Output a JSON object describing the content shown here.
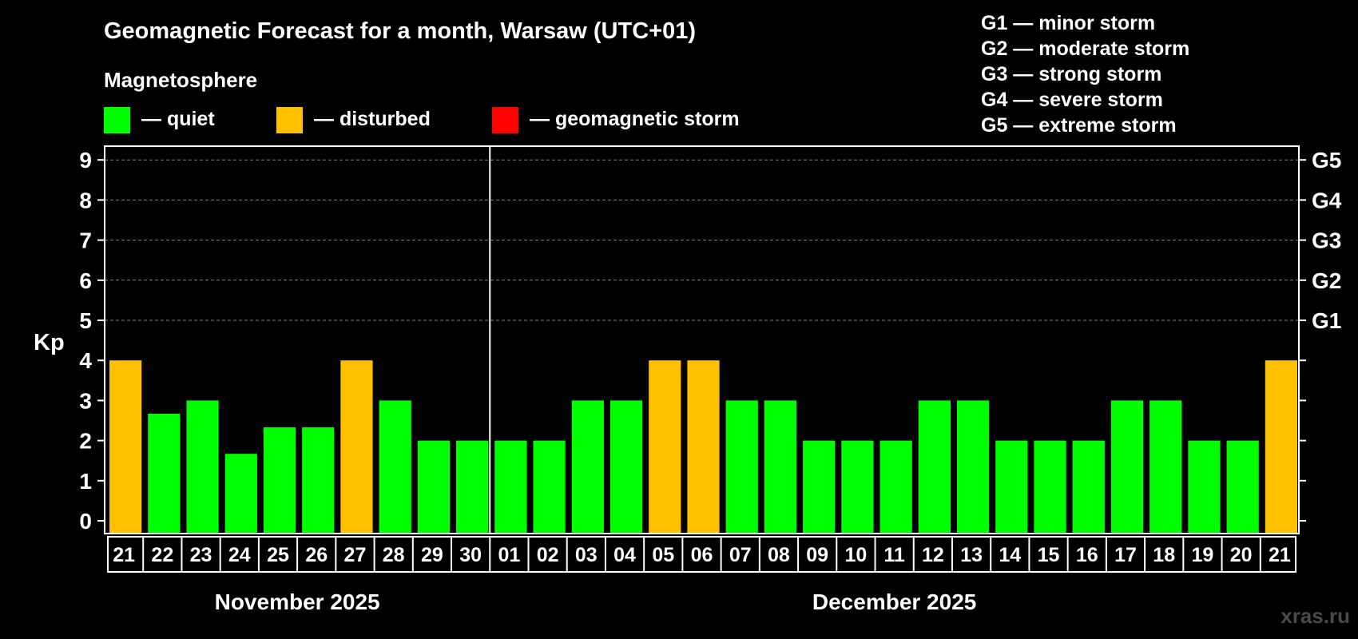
{
  "title": "Geomagnetic Forecast for a month, Warsaw (UTC+01)",
  "legend": {
    "heading": "Magnetosphere",
    "items": [
      {
        "label": "— quiet",
        "color": "#00ff00"
      },
      {
        "label": "— disturbed",
        "color": "#ffc000"
      },
      {
        "label": "— geomagnetic storm",
        "color": "#ff0000"
      }
    ]
  },
  "storm_scale": [
    "G1 — minor storm",
    "G2 — moderate storm",
    "G3 — strong storm",
    "G4 — severe storm",
    "G5 — extreme storm"
  ],
  "watermark": "xras.ru",
  "chart_data": {
    "type": "bar",
    "ylabel": "Kp",
    "ylim": [
      0,
      9
    ],
    "yticks": [
      "0",
      "1",
      "2",
      "3",
      "4",
      "5",
      "6",
      "7",
      "8",
      "9"
    ],
    "grid": "dashed at 5-9",
    "right_axis": [
      {
        "value": 5,
        "label": "G1"
      },
      {
        "value": 6,
        "label": "G2"
      },
      {
        "value": 7,
        "label": "G3"
      },
      {
        "value": 8,
        "label": "G4"
      },
      {
        "value": 9,
        "label": "G5"
      }
    ],
    "categories": [
      "21",
      "22",
      "23",
      "24",
      "25",
      "26",
      "27",
      "28",
      "29",
      "30",
      "01",
      "02",
      "03",
      "04",
      "05",
      "06",
      "07",
      "08",
      "09",
      "10",
      "11",
      "12",
      "13",
      "14",
      "15",
      "16",
      "17",
      "18",
      "19",
      "20",
      "21"
    ],
    "values": [
      4,
      2.67,
      3,
      1.67,
      2.33,
      2.33,
      4,
      3,
      2,
      2,
      2,
      2,
      3,
      3,
      4,
      4,
      3,
      3,
      2,
      2,
      2,
      3,
      3,
      2,
      2,
      2,
      3,
      3,
      2,
      2,
      4
    ],
    "status": [
      "disturbed",
      "quiet",
      "quiet",
      "quiet",
      "quiet",
      "quiet",
      "disturbed",
      "quiet",
      "quiet",
      "quiet",
      "quiet",
      "quiet",
      "quiet",
      "quiet",
      "disturbed",
      "disturbed",
      "quiet",
      "quiet",
      "quiet",
      "quiet",
      "quiet",
      "quiet",
      "quiet",
      "quiet",
      "quiet",
      "quiet",
      "quiet",
      "quiet",
      "quiet",
      "quiet",
      "disturbed"
    ],
    "months": [
      {
        "label": "November 2025",
        "start": 0,
        "end": 9
      },
      {
        "label": "December 2025",
        "start": 10,
        "end": 30
      }
    ],
    "month_divider_after_index": 9,
    "colors": {
      "quiet": "#00ff00",
      "disturbed": "#ffc000",
      "storm": "#ff0000",
      "grid": "#808080",
      "axis": "#ffffff"
    }
  }
}
